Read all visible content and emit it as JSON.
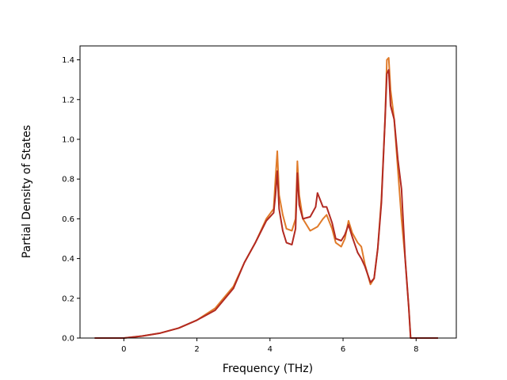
{
  "chart_data": {
    "type": "line",
    "title": "",
    "xlabel": "Frequency (THz)",
    "ylabel": "Partial Density of States",
    "xlim": [
      -1.2,
      9.1
    ],
    "ylim": [
      0,
      1.47
    ],
    "grid": false,
    "legend": "none",
    "xticks": [
      0,
      2,
      4,
      6,
      8
    ],
    "xtick_labels": [
      "0",
      "2",
      "4",
      "6",
      "8"
    ],
    "yticks": [
      0,
      0.2,
      0.4,
      0.6,
      0.8,
      1.0,
      1.2,
      1.4
    ],
    "ytick_labels": [
      "0.0",
      "0.2",
      "0.4",
      "0.6",
      "0.8",
      "1.0",
      "1.2",
      "1.4"
    ],
    "series": [
      {
        "color": "#e07b2a",
        "points": [
          [
            -0.8,
            0
          ],
          [
            0,
            0
          ],
          [
            0.5,
            0.01
          ],
          [
            1.0,
            0.025
          ],
          [
            1.5,
            0.05
          ],
          [
            2.0,
            0.09
          ],
          [
            2.5,
            0.15
          ],
          [
            3.0,
            0.26
          ],
          [
            3.3,
            0.38
          ],
          [
            3.6,
            0.48
          ],
          [
            3.9,
            0.6
          ],
          [
            4.1,
            0.65
          ],
          [
            4.15,
            0.8
          ],
          [
            4.2,
            0.94
          ],
          [
            4.25,
            0.72
          ],
          [
            4.35,
            0.62
          ],
          [
            4.45,
            0.55
          ],
          [
            4.6,
            0.54
          ],
          [
            4.7,
            0.6
          ],
          [
            4.75,
            0.89
          ],
          [
            4.8,
            0.72
          ],
          [
            4.9,
            0.6
          ],
          [
            5.1,
            0.54
          ],
          [
            5.3,
            0.56
          ],
          [
            5.45,
            0.6
          ],
          [
            5.55,
            0.62
          ],
          [
            5.7,
            0.55
          ],
          [
            5.8,
            0.48
          ],
          [
            5.95,
            0.46
          ],
          [
            6.05,
            0.5
          ],
          [
            6.15,
            0.59
          ],
          [
            6.25,
            0.53
          ],
          [
            6.4,
            0.48
          ],
          [
            6.5,
            0.46
          ],
          [
            6.6,
            0.37
          ],
          [
            6.75,
            0.27
          ],
          [
            6.85,
            0.3
          ],
          [
            6.95,
            0.45
          ],
          [
            7.05,
            0.7
          ],
          [
            7.15,
            1.1
          ],
          [
            7.2,
            1.4
          ],
          [
            7.25,
            1.41
          ],
          [
            7.3,
            1.25
          ],
          [
            7.4,
            1.1
          ],
          [
            7.5,
            0.85
          ],
          [
            7.6,
            0.6
          ],
          [
            7.7,
            0.4
          ],
          [
            7.8,
            0.15
          ],
          [
            7.85,
            0
          ],
          [
            8.6,
            0
          ]
        ]
      },
      {
        "color": "#b22a22",
        "points": [
          [
            -0.8,
            0
          ],
          [
            0,
            0
          ],
          [
            0.5,
            0.01
          ],
          [
            1.0,
            0.025
          ],
          [
            1.5,
            0.05
          ],
          [
            2.0,
            0.09
          ],
          [
            2.5,
            0.14
          ],
          [
            3.0,
            0.25
          ],
          [
            3.3,
            0.38
          ],
          [
            3.6,
            0.48
          ],
          [
            3.9,
            0.59
          ],
          [
            4.1,
            0.63
          ],
          [
            4.15,
            0.72
          ],
          [
            4.2,
            0.84
          ],
          [
            4.25,
            0.65
          ],
          [
            4.35,
            0.54
          ],
          [
            4.45,
            0.48
          ],
          [
            4.6,
            0.47
          ],
          [
            4.7,
            0.55
          ],
          [
            4.75,
            0.83
          ],
          [
            4.8,
            0.67
          ],
          [
            4.9,
            0.6
          ],
          [
            5.1,
            0.61
          ],
          [
            5.25,
            0.66
          ],
          [
            5.3,
            0.73
          ],
          [
            5.45,
            0.66
          ],
          [
            5.55,
            0.66
          ],
          [
            5.7,
            0.58
          ],
          [
            5.8,
            0.5
          ],
          [
            5.95,
            0.49
          ],
          [
            6.05,
            0.52
          ],
          [
            6.15,
            0.57
          ],
          [
            6.25,
            0.51
          ],
          [
            6.4,
            0.43
          ],
          [
            6.5,
            0.4
          ],
          [
            6.6,
            0.36
          ],
          [
            6.75,
            0.28
          ],
          [
            6.85,
            0.3
          ],
          [
            6.95,
            0.45
          ],
          [
            7.05,
            0.68
          ],
          [
            7.15,
            1.1
          ],
          [
            7.2,
            1.33
          ],
          [
            7.25,
            1.35
          ],
          [
            7.3,
            1.17
          ],
          [
            7.4,
            1.1
          ],
          [
            7.5,
            0.9
          ],
          [
            7.6,
            0.75
          ],
          [
            7.7,
            0.4
          ],
          [
            7.8,
            0.15
          ],
          [
            7.85,
            0
          ],
          [
            8.6,
            0
          ]
        ]
      }
    ]
  }
}
